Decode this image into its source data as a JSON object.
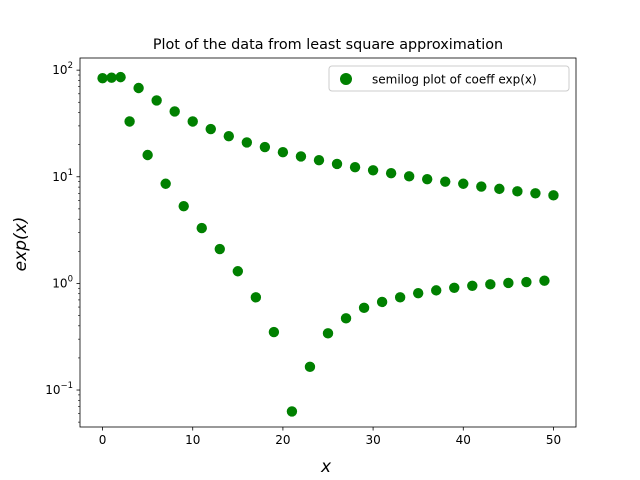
{
  "chart_data": {
    "type": "scatter",
    "title": "Plot of the data from least square approximation",
    "xlabel": "x",
    "ylabel": "exp(x)",
    "yscale": "log",
    "xlim": [
      -2.5,
      52.5
    ],
    "ylim": [
      0.045,
      130
    ],
    "x_ticks": [
      0,
      10,
      20,
      30,
      40,
      50
    ],
    "y_ticks": [
      {
        "value": 0.1,
        "base": "10",
        "exp": "−1"
      },
      {
        "value": 1,
        "base": "10",
        "exp": "0"
      },
      {
        "value": 10,
        "base": "10",
        "exp": "1"
      },
      {
        "value": 100,
        "base": "10",
        "exp": "2"
      }
    ],
    "grid": false,
    "legend_position": "top-right",
    "series": [
      {
        "name": "semilog plot of coeff exp(x)",
        "color": "#008000",
        "marker": "circle",
        "points": [
          [
            0,
            84
          ],
          [
            1,
            85
          ],
          [
            2,
            86
          ],
          [
            3,
            33
          ],
          [
            4,
            68
          ],
          [
            5,
            16
          ],
          [
            6,
            52
          ],
          [
            7,
            8.6
          ],
          [
            8,
            41
          ],
          [
            9,
            5.3
          ],
          [
            10,
            33
          ],
          [
            11,
            3.3
          ],
          [
            12,
            28
          ],
          [
            13,
            2.1
          ],
          [
            14,
            24
          ],
          [
            15,
            1.3
          ],
          [
            16,
            21
          ],
          [
            17,
            0.74
          ],
          [
            18,
            19
          ],
          [
            19,
            0.35
          ],
          [
            20,
            17
          ],
          [
            21,
            0.063
          ],
          [
            22,
            15.5
          ],
          [
            23,
            0.165
          ],
          [
            24,
            14.3
          ],
          [
            25,
            0.34
          ],
          [
            26,
            13.2
          ],
          [
            27,
            0.47
          ],
          [
            28,
            12.3
          ],
          [
            29,
            0.59
          ],
          [
            30,
            11.5
          ],
          [
            31,
            0.67
          ],
          [
            32,
            10.8
          ],
          [
            33,
            0.74
          ],
          [
            34,
            10.1
          ],
          [
            35,
            0.81
          ],
          [
            36,
            9.5
          ],
          [
            37,
            0.86
          ],
          [
            38,
            9.0
          ],
          [
            39,
            0.91
          ],
          [
            40,
            8.6
          ],
          [
            41,
            0.95
          ],
          [
            42,
            8.1
          ],
          [
            43,
            0.98
          ],
          [
            44,
            7.7
          ],
          [
            45,
            1.01
          ],
          [
            46,
            7.3
          ],
          [
            47,
            1.03
          ],
          [
            48,
            7.0
          ],
          [
            49,
            1.06
          ],
          [
            50,
            6.7
          ]
        ]
      }
    ]
  }
}
